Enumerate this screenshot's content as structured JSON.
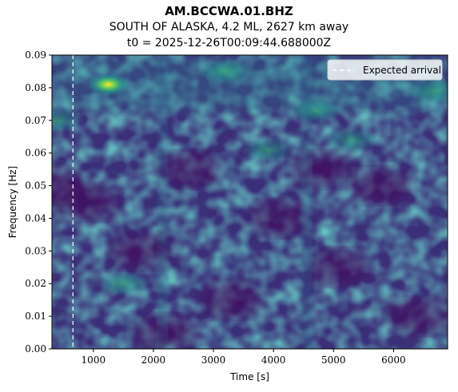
{
  "header": {
    "station": "AM.BCCWA.01.BHZ",
    "event": "SOUTH OF ALASKA, 4.2 ML, 2627 km away",
    "origin_time": "t0 = 2025-12-26T00:09:44.688000Z"
  },
  "chart_data": {
    "type": "heatmap",
    "colormap": "viridis",
    "xlabel": "Time [s]",
    "ylabel": "Frequency [Hz]",
    "xlim": [
      310,
      6900
    ],
    "ylim": [
      0.0,
      0.09
    ],
    "xticks": [
      1000,
      2000,
      3000,
      4000,
      5000,
      6000
    ],
    "yticks": [
      0.0,
      0.01,
      0.02,
      0.03,
      0.04,
      0.05,
      0.06,
      0.07,
      0.08,
      0.09
    ],
    "expected_arrival": 660,
    "legend": {
      "entries": [
        "Expected arrival"
      ],
      "placement": "upper right"
    },
    "hotspots": [
      {
        "time": 1250,
        "freq": 0.081,
        "intensity": 1.0
      },
      {
        "time": 3200,
        "freq": 0.085,
        "intensity": 0.55
      },
      {
        "time": 4700,
        "freq": 0.073,
        "intensity": 0.45
      },
      {
        "time": 6700,
        "freq": 0.079,
        "intensity": 0.5
      },
      {
        "time": 400,
        "freq": 0.07,
        "intensity": 0.4
      },
      {
        "time": 1500,
        "freq": 0.02,
        "intensity": 0.35
      },
      {
        "time": 3900,
        "freq": 0.061,
        "intensity": 0.35
      },
      {
        "time": 5300,
        "freq": 0.064,
        "intensity": 0.35
      }
    ]
  }
}
